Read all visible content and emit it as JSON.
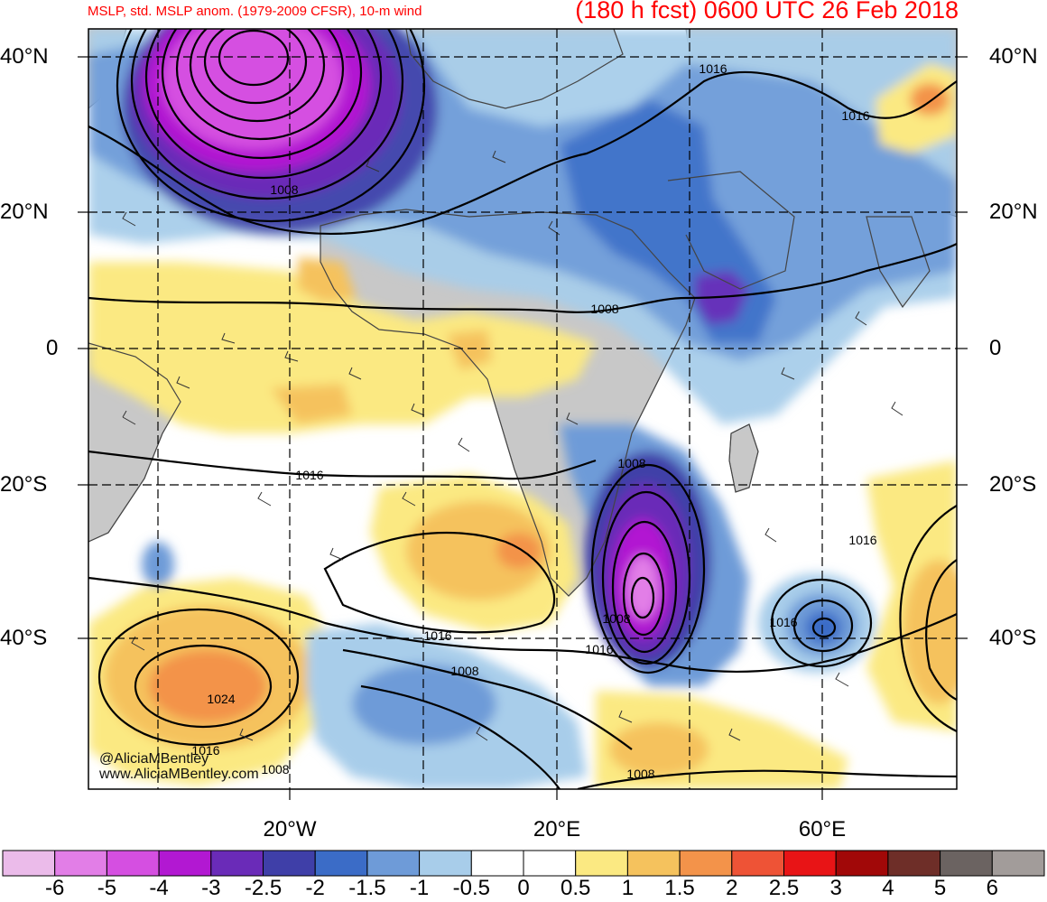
{
  "header": {
    "title_left": "MSLP, std. MSLP anom. (1979-2009 CFSR), 10-m wind",
    "title_right": "(180 h fcst) 0600 UTC 26 Feb 2018"
  },
  "axes": {
    "lat_labels": [
      "40°N",
      "20°N",
      "0",
      "20°S",
      "40°S"
    ],
    "lon_labels": [
      "20°W",
      "20°E",
      "60°E"
    ]
  },
  "credits": {
    "handle": "@AliciaMBentley",
    "website": "www.AliciaMBentley.com"
  },
  "contour_labels": [
    {
      "text": "1008"
    },
    {
      "text": "1016"
    },
    {
      "text": "1016"
    },
    {
      "text": "1008"
    },
    {
      "text": "1016"
    },
    {
      "text": "1008"
    },
    {
      "text": "1016"
    },
    {
      "text": "1016"
    },
    {
      "text": "1008"
    },
    {
      "text": "1016"
    },
    {
      "text": "1016"
    },
    {
      "text": "1008"
    },
    {
      "text": "1024"
    },
    {
      "text": "1016"
    },
    {
      "text": "1008"
    },
    {
      "text": "1008"
    }
  ],
  "colorbar": {
    "labels": [
      "-6",
      "-5",
      "-4",
      "-3",
      "-2.5",
      "-2",
      "-1.5",
      "-1",
      "-0.5",
      "0",
      "0.5",
      "1",
      "1.5",
      "2",
      "2.5",
      "3",
      "4",
      "5",
      "6"
    ],
    "colors": [
      "#ebbbea",
      "#e27ee7",
      "#d54fe1",
      "#b218d2",
      "#6a2bb8",
      "#3f3fa8",
      "#3b6cc7",
      "#6e9bd8",
      "#a8cdea",
      "#ffffff",
      "#ffffff",
      "#fbe982",
      "#f5c25d",
      "#f3934a",
      "#ee5336",
      "#e81416",
      "#a10808",
      "#6e2e28",
      "#6b6361",
      "#a29c9a"
    ]
  },
  "colors": {
    "title": "#ff0000",
    "land": "#c8c8c8"
  }
}
